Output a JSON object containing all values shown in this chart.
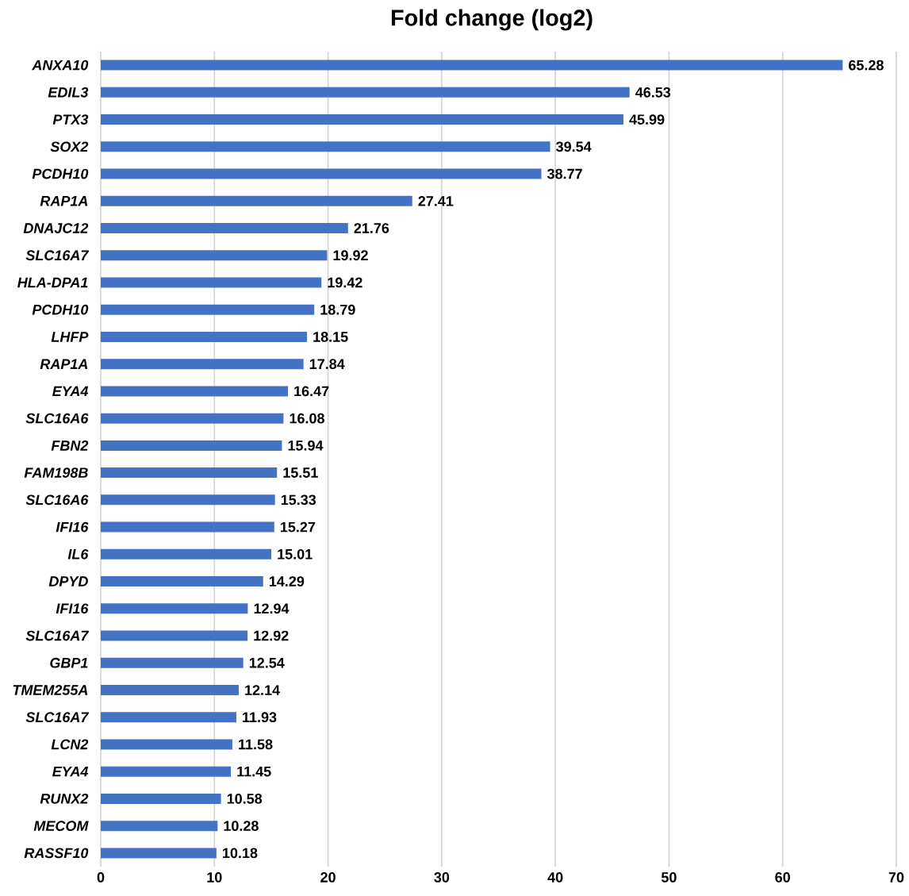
{
  "chart_data": {
    "type": "bar",
    "orientation": "horizontal",
    "title": "Fold change (log2)",
    "categories": [
      "ANXA10",
      "EDIL3",
      "PTX3",
      "SOX2",
      "PCDH10",
      "RAP1A",
      "DNAJC12",
      "SLC16A7",
      "HLA-DPA1",
      "PCDH10",
      "LHFP",
      "RAP1A",
      "EYA4",
      "SLC16A6",
      "FBN2",
      "FAM198B",
      "SLC16A6",
      "IFI16",
      "IL6",
      "DPYD",
      "IFI16",
      "SLC16A7",
      "GBP1",
      "TMEM255A",
      "SLC16A7",
      "LCN2",
      "EYA4",
      "RUNX2",
      "MECOM",
      "RASSF10"
    ],
    "values": [
      65.28,
      46.53,
      45.99,
      39.54,
      38.77,
      27.41,
      21.76,
      19.92,
      19.42,
      18.79,
      18.15,
      17.84,
      16.47,
      16.08,
      15.94,
      15.51,
      15.33,
      15.27,
      15.01,
      14.29,
      12.94,
      12.92,
      12.54,
      12.14,
      11.93,
      11.58,
      11.45,
      10.58,
      10.28,
      10.18
    ],
    "color": "#4472c4",
    "xlim": [
      0,
      70
    ],
    "xticks": [
      0,
      10,
      20,
      30,
      40,
      50,
      60,
      70
    ],
    "grid": "x",
    "data_labels": true
  }
}
